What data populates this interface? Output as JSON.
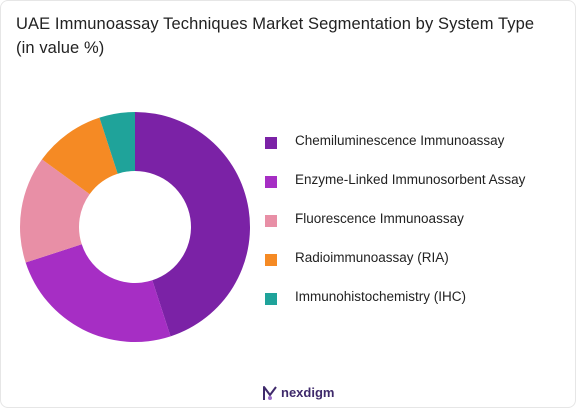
{
  "title": "UAE Immunoassay Techniques Market Segmentation by System Type (in value %)",
  "brand": {
    "name": "nexdigm",
    "icon": "nexdigm-logo-icon",
    "color": "#3f2a6b"
  },
  "chart_data": {
    "type": "pie",
    "variant": "donut",
    "title": "UAE Immunoassay Techniques Market Segmentation by System Type (in value %)",
    "legend_position": "right",
    "categories": [
      "Chemiluminescence Immunoassay",
      "Enzyme-Linked Immunosorbent Assay",
      "Fluorescence Immunoassay",
      "Radioimmunoassay (RIA)",
      "Immunohistochemistry (IHC)"
    ],
    "values": [
      45,
      25,
      15,
      10,
      5
    ],
    "colors": [
      "#7b22a6",
      "#a62ec4",
      "#e88fa6",
      "#f58a24",
      "#1fa39a"
    ]
  }
}
